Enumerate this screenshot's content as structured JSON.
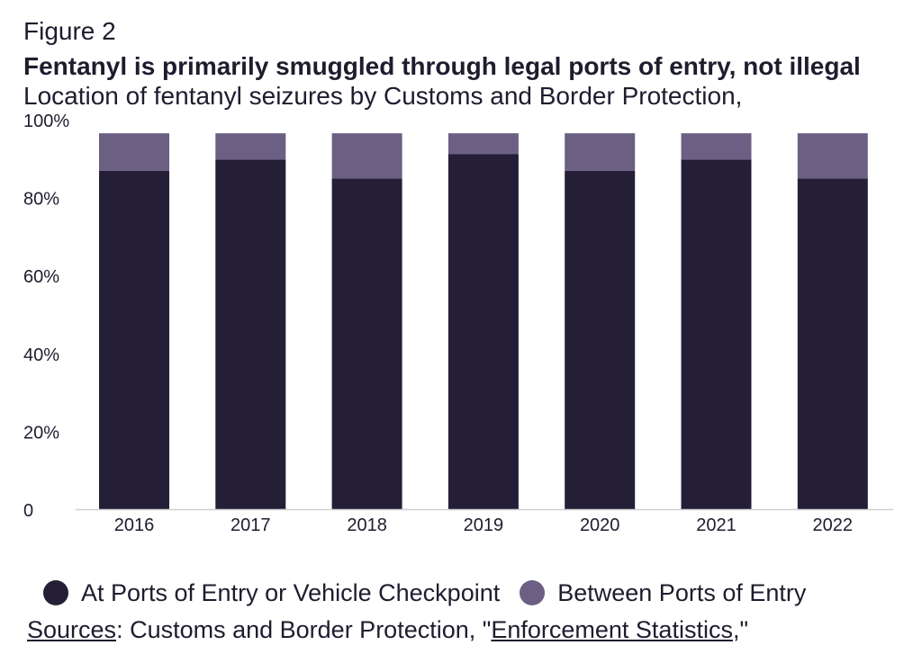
{
  "figure_label": "Figure 2",
  "title": "Fentanyl is primarily smuggled through legal ports of entry, not illegal",
  "subtitle": "Location of fentanyl seizures by Customs and Border Protection,",
  "colors": {
    "ports": "#241f36",
    "between": "#6b6083",
    "axis": "#cfcfcf",
    "text": "#1f1c2e"
  },
  "chart_data": {
    "type": "bar",
    "stacked": true,
    "categories": [
      "2016",
      "2017",
      "2018",
      "2019",
      "2020",
      "2021",
      "2022"
    ],
    "series": [
      {
        "name": "At Ports of Entry or Vehicle Checkpoint",
        "values": [
          90,
          93,
          88,
          94.5,
          90,
          93,
          88
        ]
      },
      {
        "name": "Between Ports of Entry",
        "values": [
          10,
          7,
          12,
          5.5,
          10,
          7,
          12
        ]
      }
    ],
    "ylim": [
      0,
      100
    ],
    "yticks": [
      "0",
      "20%",
      "40%",
      "60%",
      "80%",
      "100%"
    ],
    "ytick_values": [
      0,
      20,
      40,
      60,
      80,
      100
    ],
    "legend_placement": "bottom",
    "grid": false
  },
  "legend": {
    "ports_label": "At Ports of Entry or Vehicle Checkpoint",
    "between_label": "Between Ports of Entry"
  },
  "source": {
    "prefix": "Sources",
    "middle": ": Customs and Border Protection, \"",
    "link": "Enforcement Statistics",
    "suffix": ",\""
  }
}
